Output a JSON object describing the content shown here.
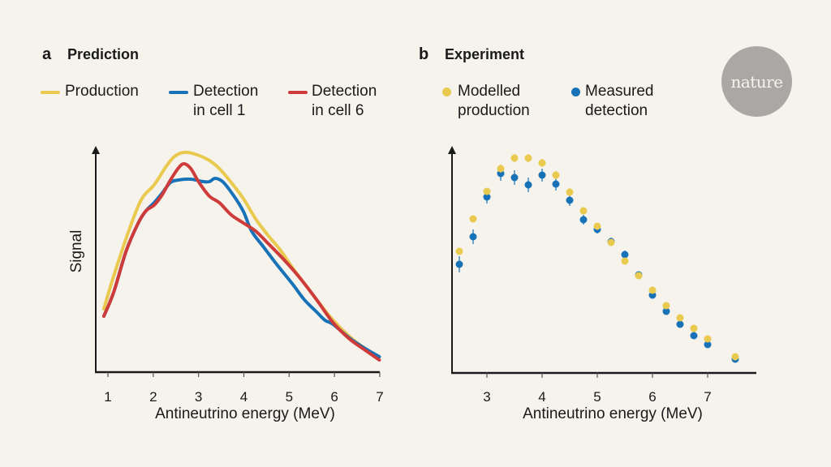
{
  "colors": {
    "background": "#f5f3ec",
    "production": "#eac94f",
    "cell1": "#1872b8",
    "cell6": "#cf3a3a",
    "axis": "#1a1a1a",
    "logo_bg": "#a9a8a4"
  },
  "logo": {
    "text": "nature"
  },
  "chart_data": [
    {
      "id": "a",
      "type": "line",
      "panel_letter": "a",
      "title": "Prediction",
      "xlabel": "Antineutrino energy (MeV)",
      "ylabel": "Signal",
      "xlim": [
        0.9,
        7
      ],
      "ylim": [
        0,
        280
      ],
      "xticks": [
        1,
        2,
        3,
        4,
        5,
        6,
        7
      ],
      "grid": false,
      "legend_position": "top",
      "series": [
        {
          "name": "Production",
          "legend": "Production",
          "color_key": "production",
          "x": [
            0.91,
            1.13,
            1.49,
            1.75,
            2.02,
            2.29,
            2.47,
            2.68,
            2.92,
            3.24,
            3.46,
            3.72,
            3.99,
            4.26,
            4.53,
            4.8,
            5.07,
            5.34,
            5.61,
            5.97,
            6.33,
            6.68,
            6.99
          ],
          "y": [
            78,
            119,
            179,
            214,
            231,
            254,
            266,
            271,
            269,
            261,
            251,
            234,
            214,
            189,
            169,
            151,
            129,
            109,
            89,
            64,
            44,
            29,
            19
          ]
        },
        {
          "name": "Detection in cell 1",
          "legend": "Detection\nin cell 1",
          "color_key": "cell1",
          "x": [
            0.91,
            1.13,
            1.4,
            1.67,
            1.84,
            2.02,
            2.2,
            2.38,
            2.56,
            2.83,
            3.1,
            3.24,
            3.37,
            3.55,
            3.82,
            4.0,
            4.17,
            4.44,
            4.71,
            5.07,
            5.34,
            5.61,
            5.79,
            5.97,
            6.33,
            6.68,
            6.99
          ],
          "y": [
            69,
            99,
            149,
            184,
            199,
            209,
            221,
            234,
            237,
            238,
            235,
            235,
            239,
            234,
            214,
            197,
            174,
            154,
            134,
            109,
            89,
            74,
            64,
            59,
            42,
            29,
            19
          ]
        },
        {
          "name": "Detection in cell 6",
          "legend": "Detection\nin cell 6",
          "color_key": "cell6",
          "x": [
            0.91,
            1.13,
            1.4,
            1.67,
            1.84,
            2.02,
            2.2,
            2.38,
            2.56,
            2.68,
            2.83,
            3.01,
            3.24,
            3.46,
            3.72,
            3.99,
            4.26,
            4.53,
            4.88,
            5.24,
            5.61,
            5.97,
            6.33,
            6.68,
            6.99
          ],
          "y": [
            69,
            99,
            149,
            184,
            199,
            206,
            219,
            237,
            252,
            257,
            251,
            234,
            217,
            209,
            194,
            184,
            174,
            159,
            139,
            116,
            89,
            61,
            41,
            27,
            15
          ]
        }
      ]
    },
    {
      "id": "b",
      "type": "scatter",
      "panel_letter": "b",
      "title": "Experiment",
      "xlabel": "Antineutrino energy (MeV)",
      "ylabel": "",
      "xlim": [
        2.38,
        7.9
      ],
      "ylim": [
        0,
        280
      ],
      "xticks": [
        3,
        4,
        5,
        6,
        7
      ],
      "grid": false,
      "legend_position": "top",
      "series": [
        {
          "name": "Modelled production",
          "legend": "Modelled\nproduction",
          "color_key": "production",
          "x": [
            2.5,
            2.75,
            3.0,
            3.25,
            3.5,
            3.75,
            4.0,
            4.25,
            4.5,
            4.75,
            5.0,
            5.25,
            5.5,
            5.75,
            6.0,
            6.25,
            6.5,
            6.75,
            7.0,
            7.5
          ],
          "y": [
            150,
            190,
            224,
            252,
            265,
            265,
            259,
            244,
            223,
            200,
            181,
            161,
            138,
            120,
            102,
            83,
            68,
            55,
            42,
            20
          ],
          "error": [
            3,
            3,
            3,
            5,
            5,
            5,
            5,
            5,
            5,
            4,
            3,
            3,
            3,
            3,
            3,
            2,
            2,
            2,
            2,
            2
          ]
        },
        {
          "name": "Measured detection",
          "legend": "Measured\ndetection",
          "color_key": "cell1",
          "x": [
            2.5,
            2.75,
            3.0,
            3.25,
            3.5,
            3.75,
            4.0,
            4.25,
            4.5,
            4.75,
            5.0,
            5.25,
            5.5,
            5.75,
            6.0,
            6.25,
            6.5,
            6.75,
            7.0,
            7.5
          ],
          "y": [
            134,
            168,
            217,
            246,
            241,
            232,
            244,
            233,
            213,
            189,
            177,
            162,
            146,
            121,
            96,
            76,
            60,
            46,
            35,
            17
          ],
          "error": [
            10,
            9,
            8,
            9,
            9,
            9,
            8,
            8,
            7,
            6,
            5,
            5,
            5,
            4,
            3,
            3,
            3,
            3,
            3,
            3
          ]
        }
      ]
    }
  ]
}
